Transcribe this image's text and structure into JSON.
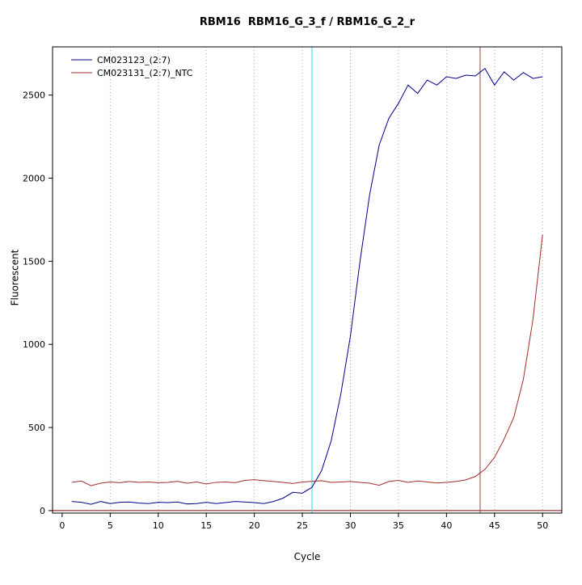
{
  "chart_data": {
    "type": "line",
    "title": "RBM16  RBM16_G_3_f / RBM16_G_2_r",
    "xlabel": "Cycle",
    "ylabel": "Fluorescent",
    "xlim": [
      -1,
      52
    ],
    "ylim": [
      -15,
      2790
    ],
    "x_ticks": [
      0,
      5,
      10,
      15,
      20,
      25,
      30,
      35,
      40,
      45,
      50
    ],
    "y_ticks": [
      0,
      500,
      1000,
      1500,
      2000,
      2500
    ],
    "x_start": 1,
    "grid": {
      "style": "dotted",
      "color": "#aaaaaa"
    },
    "legend_position": "top-left",
    "series": [
      {
        "name": "CM023123_(2:7)",
        "color": "#00008B",
        "values": [
          55,
          50,
          38,
          55,
          42,
          50,
          52,
          45,
          42,
          50,
          48,
          52,
          40,
          42,
          50,
          42,
          48,
          55,
          52,
          48,
          42,
          55,
          75,
          110,
          105,
          140,
          240,
          420,
          700,
          1050,
          1500,
          1900,
          2200,
          2360,
          2450,
          2560,
          2510,
          2590,
          2560,
          2610,
          2600,
          2620,
          2615,
          2660,
          2560,
          2640,
          2590,
          2635,
          2600,
          2610
        ]
      },
      {
        "name": "CM023131_(2:7)_NTC",
        "color": "#A52A2A",
        "values": [
          170,
          178,
          150,
          165,
          172,
          168,
          175,
          170,
          172,
          168,
          170,
          176,
          165,
          172,
          160,
          170,
          172,
          168,
          182,
          186,
          180,
          175,
          170,
          163,
          172,
          176,
          180,
          170,
          172,
          175,
          170,
          165,
          152,
          175,
          182,
          170,
          178,
          172,
          166,
          170,
          175,
          185,
          205,
          248,
          320,
          430,
          560,
          790,
          1150,
          1660
        ]
      }
    ],
    "vlines": [
      {
        "x": 26,
        "color": "#00EEEE"
      },
      {
        "x": 43.5,
        "color": "#A04040"
      }
    ],
    "hlines": [
      {
        "y": 0,
        "color": "#8B0000"
      }
    ]
  }
}
